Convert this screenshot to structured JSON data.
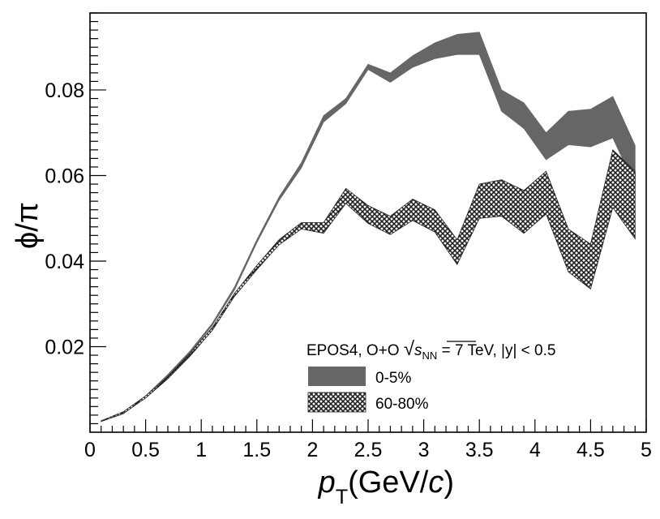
{
  "chart_data": {
    "type": "area",
    "title": "",
    "xlabel": {
      "symbol": "p",
      "subscript": "T",
      "unit_open": "(GeV/",
      "unit_var": "c",
      "unit_close": ")"
    },
    "ylabel": "ϕ/π",
    "xlim": [
      0,
      5
    ],
    "ylim": [
      0.0,
      0.098
    ],
    "x_ticks": [
      0,
      0.5,
      1,
      1.5,
      2,
      2.5,
      3,
      3.5,
      4,
      4.5,
      5
    ],
    "x_tick_labels": [
      "0",
      "0.5",
      "1",
      "1.5",
      "2",
      "2.5",
      "3",
      "3.5",
      "4",
      "4.5",
      "5"
    ],
    "y_ticks": [
      0.02,
      0.04,
      0.06,
      0.08
    ],
    "y_tick_labels": [
      "0.02",
      "0.04",
      "0.06",
      "0.08"
    ],
    "legend": {
      "header": {
        "pre": "EPOS4, O+O ",
        "sqrt_var": "s",
        "sqrt_sub": "NN",
        "post": " = 7 TeV, |y| < 0.5"
      },
      "position": "bottom-right"
    },
    "series": [
      {
        "name": "0-5%",
        "style": "solid-dark-gray",
        "color": "#666666",
        "x": [
          0.1,
          0.3,
          0.5,
          0.7,
          0.9,
          1.1,
          1.3,
          1.5,
          1.7,
          1.9,
          2.1,
          2.3,
          2.5,
          2.7,
          2.9,
          3.1,
          3.3,
          3.5,
          3.7,
          3.9,
          4.1,
          4.3,
          4.5,
          4.7,
          4.9
        ],
        "upper": [
          0.0025,
          0.0045,
          0.0085,
          0.0135,
          0.019,
          0.0255,
          0.034,
          0.045,
          0.055,
          0.063,
          0.074,
          0.078,
          0.086,
          0.084,
          0.088,
          0.091,
          0.093,
          0.0935,
          0.08,
          0.077,
          0.07,
          0.075,
          0.0755,
          0.0785,
          0.067
        ],
        "lower": [
          0.0025,
          0.0043,
          0.0082,
          0.013,
          0.0185,
          0.025,
          0.0333,
          0.0443,
          0.0542,
          0.0618,
          0.0725,
          0.0768,
          0.0848,
          0.0818,
          0.0853,
          0.0873,
          0.0883,
          0.0883,
          0.075,
          0.071,
          0.0637,
          0.0672,
          0.0667,
          0.0688,
          0.0575
        ]
      },
      {
        "name": "60-80%",
        "style": "hatched-crosshatch",
        "color": "#222222",
        "x": [
          0.1,
          0.3,
          0.5,
          0.7,
          0.9,
          1.1,
          1.3,
          1.5,
          1.7,
          1.9,
          2.1,
          2.3,
          2.5,
          2.7,
          2.9,
          3.1,
          3.3,
          3.5,
          3.7,
          3.9,
          4.1,
          4.3,
          4.5,
          4.7,
          4.9
        ],
        "upper": [
          0.0027,
          0.0048,
          0.0085,
          0.013,
          0.0185,
          0.0245,
          0.0325,
          0.039,
          0.045,
          0.049,
          0.049,
          0.057,
          0.053,
          0.0505,
          0.0545,
          0.052,
          0.045,
          0.058,
          0.059,
          0.0565,
          0.061,
          0.0475,
          0.044,
          0.066,
          0.061
        ],
        "lower": [
          0.0025,
          0.0044,
          0.008,
          0.0125,
          0.0178,
          0.0238,
          0.0318,
          0.038,
          0.0438,
          0.0475,
          0.0465,
          0.0535,
          0.0488,
          0.0462,
          0.0495,
          0.0468,
          0.0392,
          0.05,
          0.0505,
          0.0465,
          0.051,
          0.0375,
          0.0335,
          0.0525,
          0.0452
        ]
      }
    ]
  }
}
